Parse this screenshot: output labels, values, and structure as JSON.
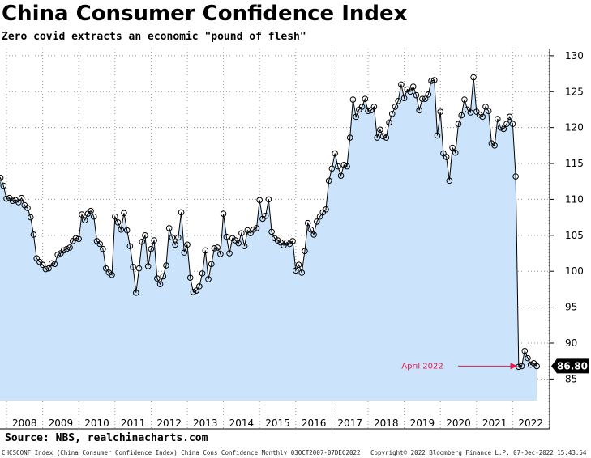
{
  "title": "China Consumer Confidence Index",
  "subtitle": "Zero covid extracts an economic \"pound of flesh\"",
  "source": "Source: NBS, realchinacharts.com",
  "footer": {
    "left": "CHCSCONF Index (China Consumer Confidence Index) China Cons Confidence  Monthly 03OCT2007-07DEC2022",
    "right": "Copyright© 2022 Bloomberg Finance L.P.   07-Dec-2022 15:43:54"
  },
  "colors": {
    "fill": "#cce4fb",
    "line": "#000000",
    "annotation": "#e8174a",
    "last_value_bg": "#000000"
  },
  "chart_data": {
    "type": "area",
    "title": "China Consumer Confidence Index",
    "subtitle": "Zero covid extracts an economic \"pound of flesh\"",
    "x_start": "2007-10",
    "frequency": "monthly",
    "ylim": [
      82,
      131
    ],
    "yticks": [
      85,
      90,
      95,
      100,
      105,
      110,
      115,
      120,
      125,
      130
    ],
    "year_labels": [
      "2008",
      "2009",
      "2010",
      "2011",
      "2012",
      "2013",
      "2014",
      "2015",
      "2016",
      "2017",
      "2018",
      "2019",
      "2020",
      "2021",
      "2022"
    ],
    "grid": true,
    "axis_side": "right",
    "last_value_label": "86.80",
    "annotation": {
      "label": "April 2022",
      "target": "2022-04"
    },
    "values": [
      112.3,
      113.0,
      111.9,
      110.1,
      110.2,
      109.8,
      109.9,
      109.6,
      110.2,
      109.2,
      108.8,
      107.5,
      105.1,
      101.8,
      101.3,
      100.9,
      100.3,
      100.4,
      101.1,
      101.0,
      102.3,
      102.5,
      102.9,
      103.1,
      103.3,
      104.2,
      104.6,
      104.5,
      107.9,
      107.1,
      108.0,
      108.4,
      107.6,
      104.2,
      103.8,
      103.1,
      100.4,
      99.8,
      99.5,
      107.6,
      106.8,
      105.8,
      108.1,
      105.7,
      103.5,
      100.6,
      97.0,
      100.4,
      104.1,
      105.0,
      100.7,
      103.1,
      104.3,
      99.0,
      98.2,
      99.3,
      100.8,
      106.0,
      104.7,
      103.7,
      104.7,
      108.2,
      102.6,
      103.7,
      99.1,
      97.1,
      97.3,
      97.9,
      99.7,
      102.9,
      98.9,
      101.0,
      103.2,
      103.3,
      102.4,
      108.0,
      104.8,
      102.5,
      104.6,
      104.3,
      103.9,
      105.3,
      103.5,
      105.7,
      105.3,
      105.8,
      106.0,
      109.9,
      107.3,
      107.7,
      110.0,
      105.5,
      104.6,
      104.3,
      104.0,
      103.6,
      104.0,
      103.8,
      104.2,
      100.1,
      100.9,
      99.8,
      102.8,
      106.7,
      105.8,
      105.1,
      106.9,
      107.6,
      108.2,
      108.6,
      112.6,
      114.3,
      116.4,
      114.6,
      113.3,
      114.8,
      114.6,
      118.6,
      123.9,
      121.5,
      122.5,
      122.9,
      124.0,
      122.3,
      122.4,
      122.9,
      118.6,
      119.7,
      118.8,
      118.6,
      120.7,
      121.9,
      122.9,
      123.7,
      126.0,
      124.1,
      125.3,
      125.0,
      125.7,
      124.5,
      122.4,
      124.0,
      124.0,
      124.6,
      126.5,
      126.6,
      118.9,
      122.2,
      116.4,
      115.9,
      112.6,
      117.2,
      116.5,
      120.5,
      121.7,
      123.9,
      122.5,
      122.1,
      127.0,
      122.2,
      121.8,
      121.5,
      122.9,
      122.3,
      117.8,
      117.5,
      121.2,
      120.0,
      119.8,
      120.5,
      121.5,
      120.5,
      113.2,
      86.7,
      86.8,
      88.9,
      87.9,
      87.0,
      87.2,
      86.8
    ]
  }
}
